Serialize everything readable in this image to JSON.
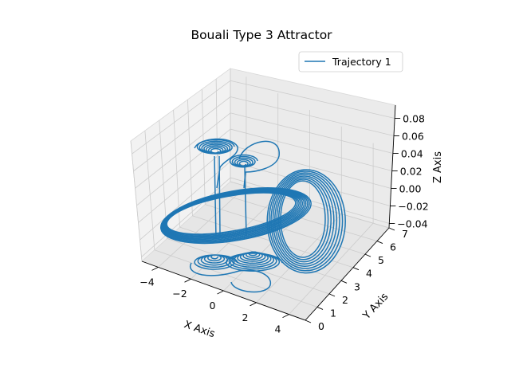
{
  "chart_data": {
    "type": "line",
    "projection": "3d",
    "title": "Bouali Type 3 Attractor",
    "xlabel": "X Axis",
    "ylabel": "Y Axis",
    "zlabel": "Z Axis",
    "xlim": [
      -5,
      5
    ],
    "ylim": [
      0,
      7
    ],
    "zlim": [
      -0.045,
      0.095
    ],
    "x_ticks": [
      "−4",
      "−2",
      "0",
      "2",
      "4"
    ],
    "y_ticks": [
      "0",
      "1",
      "2",
      "3",
      "4",
      "5",
      "6",
      "7"
    ],
    "z_ticks": [
      "−0.04",
      "−0.02",
      "0.00",
      "0.02",
      "0.04",
      "0.06",
      "0.08"
    ],
    "grid": true,
    "legend_position": "upper right",
    "series": [
      {
        "name": "Trajectory 1",
        "color": "#1f77b4"
      }
    ]
  }
}
